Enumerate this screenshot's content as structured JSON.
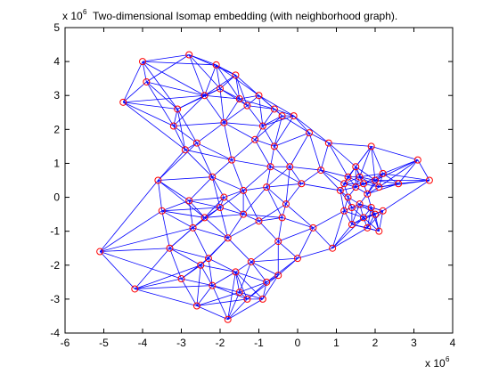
{
  "chart_data": {
    "type": "scatter",
    "title": "Two-dimensional Isomap embedding (with neighborhood graph).",
    "xlabel": "",
    "ylabel": "",
    "x_multiplier": "x 10",
    "x_multiplier_exp": "6",
    "y_multiplier": "x 10",
    "y_multiplier_exp": "6",
    "xlim": [
      -6,
      4
    ],
    "ylim": [
      -4,
      5
    ],
    "x_ticks": [
      -6,
      -5,
      -4,
      -3,
      -2,
      -1,
      0,
      1,
      2,
      3,
      4
    ],
    "y_ticks": [
      -4,
      -3,
      -2,
      -1,
      0,
      1,
      2,
      3,
      4,
      5
    ],
    "x_tick_labels": [
      "-6",
      "-5",
      "-4",
      "-3",
      "-2",
      "-1",
      "0",
      "1",
      "2",
      "3",
      "4"
    ],
    "y_tick_labels": [
      "-4",
      "-3",
      "-2",
      "-1",
      "0",
      "1",
      "2",
      "3",
      "4",
      "5"
    ],
    "grid": false,
    "marker_color": "#ff0000",
    "edge_color": "#0000ff",
    "points": [
      {
        "x": -5.1,
        "y": -1.6
      },
      {
        "x": -4.5,
        "y": 2.8
      },
      {
        "x": -4.2,
        "y": -2.7
      },
      {
        "x": -4.0,
        "y": 4.0
      },
      {
        "x": -3.9,
        "y": 3.4
      },
      {
        "x": -3.6,
        "y": 0.5
      },
      {
        "x": -3.5,
        "y": -0.4
      },
      {
        "x": -3.3,
        "y": -1.5
      },
      {
        "x": -3.1,
        "y": 2.6
      },
      {
        "x": -3.0,
        "y": -2.4
      },
      {
        "x": -2.8,
        "y": 4.2
      },
      {
        "x": -2.7,
        "y": -0.9
      },
      {
        "x": -2.6,
        "y": -3.2
      },
      {
        "x": -2.6,
        "y": 1.6
      },
      {
        "x": -2.4,
        "y": 3.0
      },
      {
        "x": -2.3,
        "y": -1.8
      },
      {
        "x": -2.2,
        "y": 0.6
      },
      {
        "x": -2.1,
        "y": 3.9
      },
      {
        "x": -2.0,
        "y": -0.3
      },
      {
        "x": -1.9,
        "y": 2.2
      },
      {
        "x": -1.8,
        "y": -3.6
      },
      {
        "x": -1.8,
        "y": -1.2
      },
      {
        "x": -1.7,
        "y": 1.1
      },
      {
        "x": -1.6,
        "y": 3.6
      },
      {
        "x": -1.5,
        "y": -2.8
      },
      {
        "x": -1.4,
        "y": 0.2
      },
      {
        "x": -1.3,
        "y": 2.7
      },
      {
        "x": -1.2,
        "y": -1.9
      },
      {
        "x": -1.1,
        "y": 1.7
      },
      {
        "x": -1.0,
        "y": -0.7
      },
      {
        "x": -0.9,
        "y": 2.1
      },
      {
        "x": -0.8,
        "y": -2.5
      },
      {
        "x": -0.7,
        "y": 0.9
      },
      {
        "x": -0.6,
        "y": 1.5
      },
      {
        "x": -0.5,
        "y": -1.3
      },
      {
        "x": -0.4,
        "y": 2.4
      },
      {
        "x": -0.3,
        "y": -0.2
      },
      {
        "x": -0.2,
        "y": 0.9
      },
      {
        "x": -0.1,
        "y": 2.4
      },
      {
        "x": 0.0,
        "y": -1.8
      },
      {
        "x": 0.1,
        "y": 0.4
      },
      {
        "x": 0.3,
        "y": 1.9
      },
      {
        "x": 0.4,
        "y": -0.9
      },
      {
        "x": 0.6,
        "y": 0.8
      },
      {
        "x": 0.8,
        "y": 1.6
      },
      {
        "x": 0.9,
        "y": -1.5
      },
      {
        "x": 1.1,
        "y": 0.2
      },
      {
        "x": 1.2,
        "y": -0.4
      },
      {
        "x": 1.3,
        "y": 0.6
      },
      {
        "x": 1.4,
        "y": -0.8
      },
      {
        "x": 1.5,
        "y": 0.9
      },
      {
        "x": 1.6,
        "y": -0.2
      },
      {
        "x": 1.7,
        "y": 0.4
      },
      {
        "x": 1.8,
        "y": -0.9
      },
      {
        "x": 1.9,
        "y": 1.5
      },
      {
        "x": 2.0,
        "y": -0.5
      },
      {
        "x": 2.1,
        "y": 0.3
      },
      {
        "x": 2.1,
        "y": -1.0
      },
      {
        "x": 2.2,
        "y": 0.7
      },
      {
        "x": 2.2,
        "y": -0.4
      },
      {
        "x": 2.6,
        "y": 0.4
      },
      {
        "x": 3.1,
        "y": 1.1
      },
      {
        "x": 3.4,
        "y": 0.5
      },
      {
        "x": 1.3,
        "y": 0.0
      },
      {
        "x": 1.5,
        "y": 0.3
      },
      {
        "x": 1.4,
        "y": -0.3
      },
      {
        "x": 1.6,
        "y": 0.6
      },
      {
        "x": 1.7,
        "y": -0.6
      },
      {
        "x": 1.8,
        "y": 0.1
      },
      {
        "x": 1.9,
        "y": -0.3
      },
      {
        "x": 2.0,
        "y": 0.5
      },
      {
        "x": 1.2,
        "y": 0.4
      },
      {
        "x": -2.5,
        "y": -2.0
      },
      {
        "x": -2.2,
        "y": -2.6
      },
      {
        "x": -1.6,
        "y": -2.2
      },
      {
        "x": -1.3,
        "y": -3.0
      },
      {
        "x": -0.9,
        "y": -3.0
      },
      {
        "x": -0.5,
        "y": -2.3
      },
      {
        "x": -2.9,
        "y": 1.4
      },
      {
        "x": -3.2,
        "y": 2.1
      },
      {
        "x": -2.0,
        "y": 3.2
      },
      {
        "x": -1.5,
        "y": 2.9
      },
      {
        "x": -1.0,
        "y": 3.0
      },
      {
        "x": -0.6,
        "y": 2.6
      },
      {
        "x": -2.8,
        "y": -0.1
      },
      {
        "x": -2.4,
        "y": -0.6
      },
      {
        "x": -1.9,
        "y": 0.0
      },
      {
        "x": -1.4,
        "y": -0.5
      },
      {
        "x": -0.8,
        "y": 0.3
      },
      {
        "x": -0.4,
        "y": -0.6
      }
    ],
    "edges_k": 6
  }
}
